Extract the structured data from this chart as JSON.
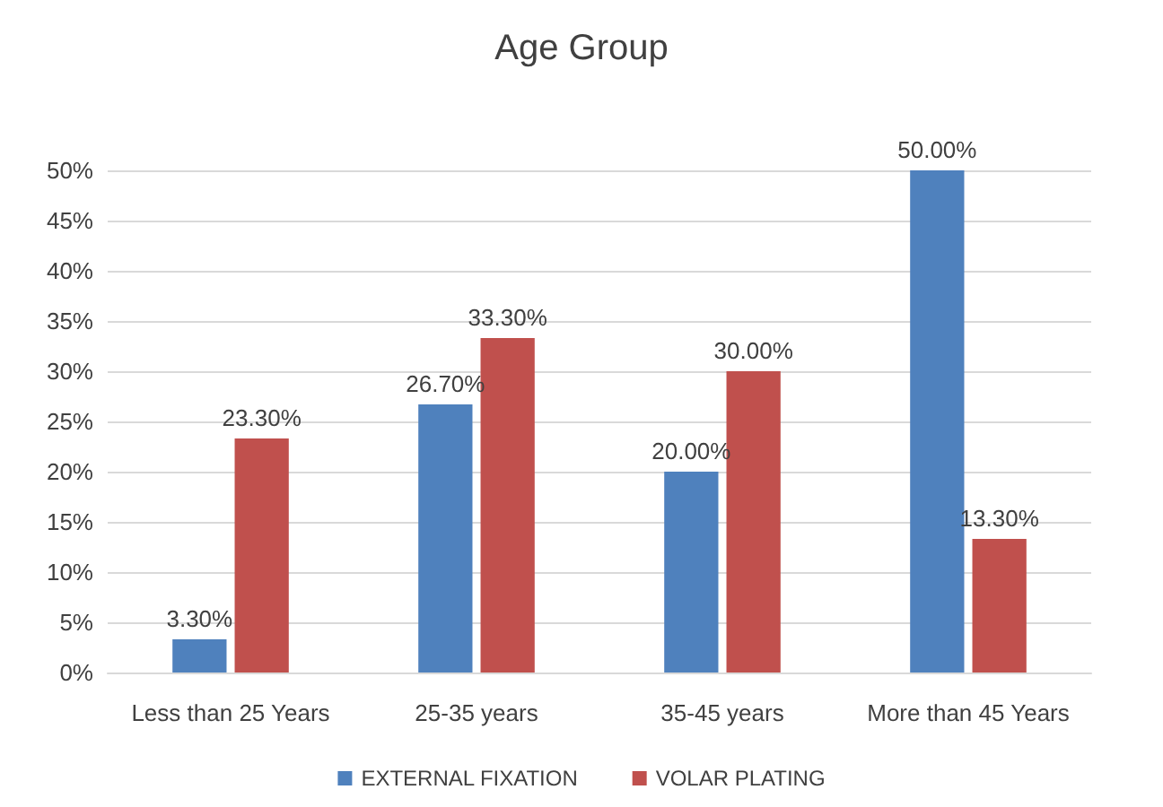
{
  "chart_data": {
    "type": "bar",
    "title": "Age Group",
    "categories": [
      "Less than 25 Years",
      "25-35 years",
      "35-45 years",
      "More than 45 Years"
    ],
    "series": [
      {
        "name": "EXTERNAL FIXATION",
        "color": "#4f81bd",
        "values": [
          3.3,
          26.7,
          20,
          50
        ],
        "value_labels": [
          "3.30%",
          "26.70%",
          "20.00%",
          "50.00%"
        ]
      },
      {
        "name": "VOLAR PLATING",
        "color": "#c0504d",
        "values": [
          23.3,
          33.3,
          30,
          13.3
        ],
        "value_labels": [
          "23.30%",
          "33.30%",
          "30.00%",
          "13.30%"
        ]
      }
    ],
    "ylim": [
      0,
      50
    ],
    "yticks": [
      {
        "value": 0,
        "label": "0%"
      },
      {
        "value": 5,
        "label": "5%"
      },
      {
        "value": 10,
        "label": "10%"
      },
      {
        "value": 15,
        "label": "15%"
      },
      {
        "value": 20,
        "label": "20%"
      },
      {
        "value": 25,
        "label": "25%"
      },
      {
        "value": 30,
        "label": "30%"
      },
      {
        "value": 35,
        "label": "35%"
      },
      {
        "value": 40,
        "label": "40%"
      },
      {
        "value": 45,
        "label": "45%"
      },
      {
        "value": 50,
        "label": "50%"
      }
    ],
    "grid": "y",
    "legend": "bottom"
  }
}
